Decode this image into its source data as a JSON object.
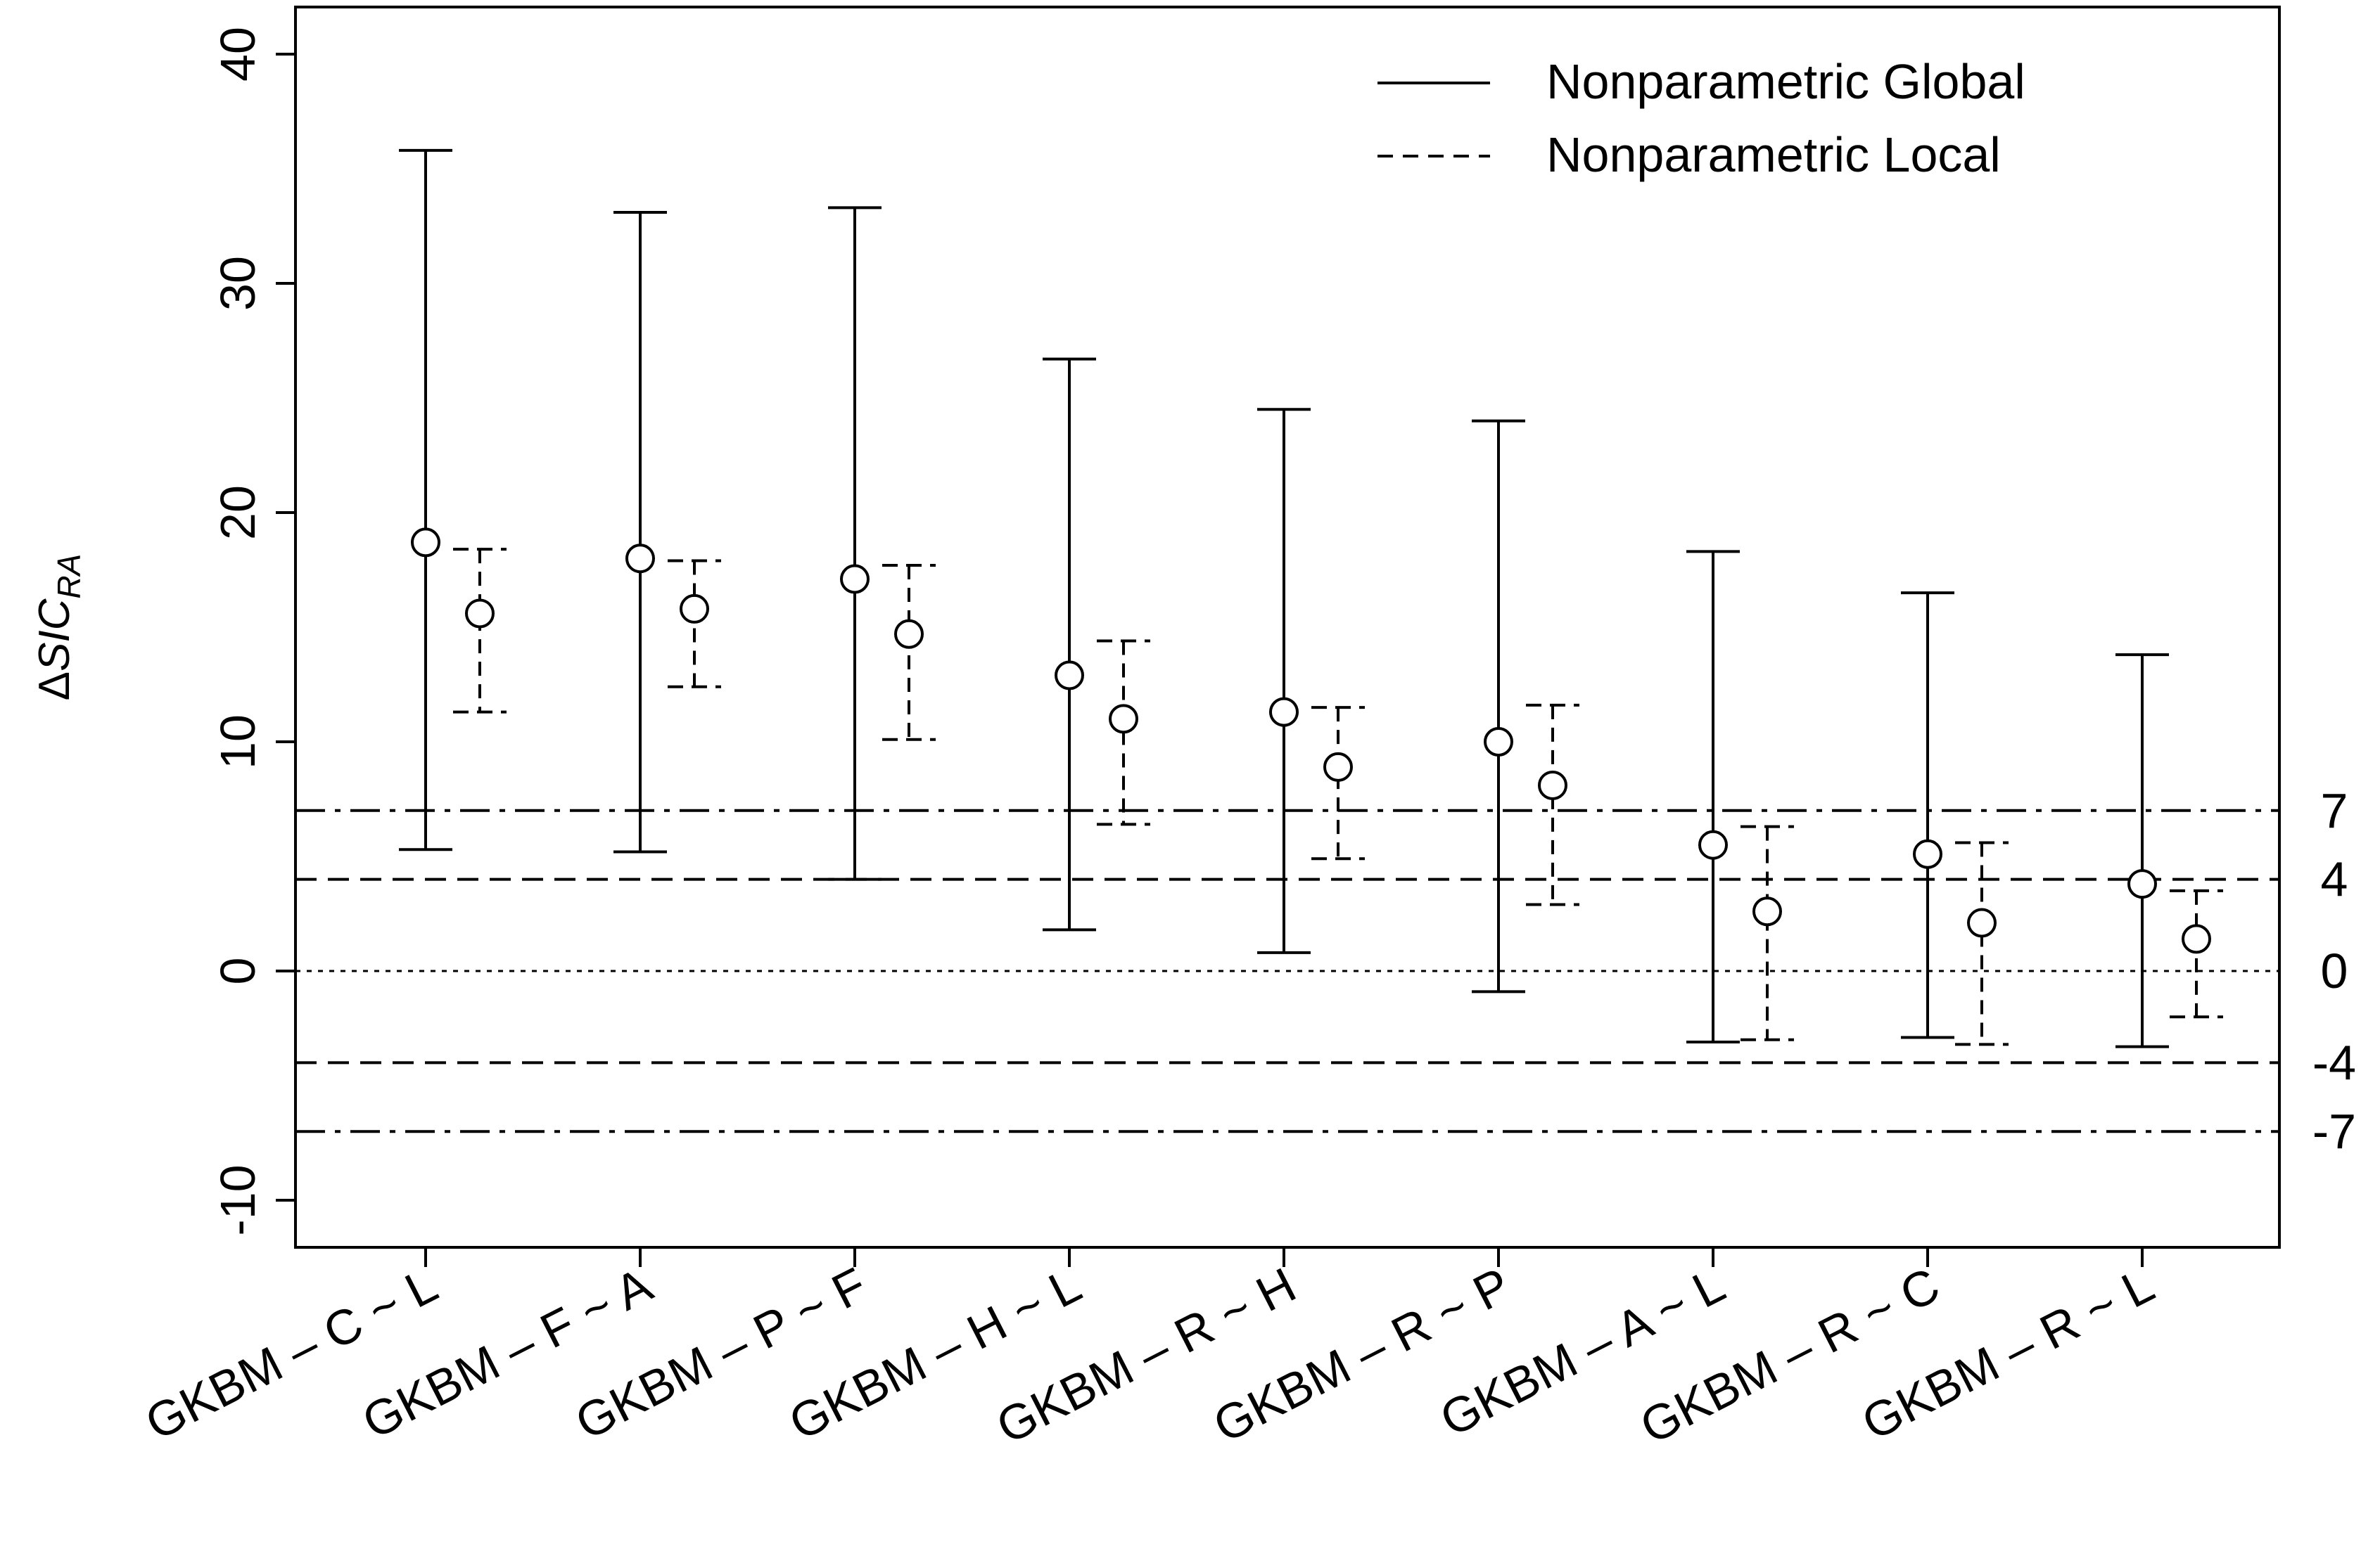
{
  "chart_data": {
    "type": "errorbar",
    "title": "",
    "xlabel": "",
    "ylabel": {
      "prefix": "Δ",
      "main": "SIC",
      "sub": "RA"
    },
    "ylim": [
      -12,
      40.5
    ],
    "y_ticks": [
      -10,
      0,
      10,
      20,
      30,
      40
    ],
    "y_tick_labels": [
      "-10",
      "0",
      "10",
      "20",
      "30",
      "40"
    ],
    "categories": [
      "GKBM – C ~ L",
      "GKBM – F ~ A",
      "GKBM – P ~ F",
      "GKBM – H ~ L",
      "GKBM – R ~ H",
      "GKBM – R ~ P",
      "GKBM – A ~ L",
      "GKBM – R ~ C",
      "GKBM – R ~ L"
    ],
    "series": [
      {
        "name": "Nonparametric Global",
        "line_style": "solid",
        "estimate": [
          18.7,
          18.0,
          17.1,
          12.9,
          11.3,
          10.0,
          5.5,
          5.1,
          3.8
        ],
        "lower": [
          5.3,
          5.2,
          4.0,
          1.8,
          0.8,
          -0.9,
          -3.1,
          -2.9,
          -3.3
        ],
        "upper": [
          35.8,
          33.1,
          33.3,
          26.7,
          24.5,
          24.0,
          18.3,
          16.5,
          13.8
        ]
      },
      {
        "name": "Nonparametric Local",
        "line_style": "dashed",
        "estimate": [
          15.6,
          15.8,
          14.7,
          11.0,
          8.9,
          8.1,
          2.6,
          2.1,
          1.4
        ],
        "lower": [
          11.3,
          12.4,
          10.1,
          6.4,
          4.9,
          2.9,
          -3.0,
          -3.2,
          -2.0
        ],
        "upper": [
          18.4,
          17.9,
          17.7,
          14.4,
          11.5,
          11.6,
          6.3,
          5.6,
          3.5
        ]
      }
    ],
    "reference_lines": [
      {
        "value": 7,
        "label": "7",
        "style": "dashdot"
      },
      {
        "value": 4,
        "label": "4",
        "style": "dashed"
      },
      {
        "value": 0,
        "label": "0",
        "style": "dotted"
      },
      {
        "value": -4,
        "label": "-4",
        "style": "dashed"
      },
      {
        "value": -7,
        "label": "-7",
        "style": "dashdot"
      }
    ],
    "legend": {
      "position": "top-right",
      "entries": [
        "Nonparametric Global",
        "Nonparametric Local"
      ]
    }
  }
}
